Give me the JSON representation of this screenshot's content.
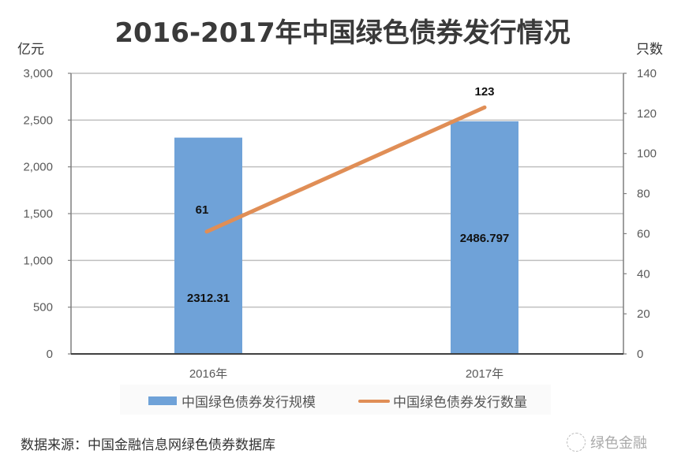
{
  "title": "2016-2017年中国绿色债券发行情况",
  "left_unit": "亿元",
  "right_unit": "只数",
  "source": "数据来源：中国金融信息网绿色债券数据库",
  "brand": "绿色金融",
  "colors": {
    "bar": "#6fa2d8",
    "line": "#e08e56",
    "grid": "#bfbfbf"
  },
  "legend": {
    "bar_label": "中国绿色债券发行规模",
    "line_label": "中国绿色债券发行数量"
  },
  "chart_data": {
    "type": "bar+line",
    "title": "2016-2017年中国绿色债券发行情况",
    "categories": [
      "2016年",
      "2017年"
    ],
    "series": [
      {
        "name": "中国绿色债券发行规模",
        "type": "bar",
        "axis": "left",
        "values": [
          2312.31,
          2486.797
        ],
        "labels": [
          "2312.31",
          "2486.797"
        ]
      },
      {
        "name": "中国绿色债券发行数量",
        "type": "line",
        "axis": "right",
        "values": [
          61,
          123
        ],
        "labels": [
          "61",
          "123"
        ]
      }
    ],
    "ylabel_left": "亿元",
    "ylabel_right": "只数",
    "ylim_left": [
      0,
      3000
    ],
    "ylim_right": [
      0,
      140
    ],
    "yticks_left": [
      "0",
      "500",
      "1,000",
      "1,500",
      "2,000",
      "2,500",
      "3,000"
    ],
    "yticks_right": [
      "0",
      "20",
      "40",
      "60",
      "80",
      "100",
      "120",
      "140"
    ],
    "grid": true,
    "legend_position": "bottom"
  }
}
